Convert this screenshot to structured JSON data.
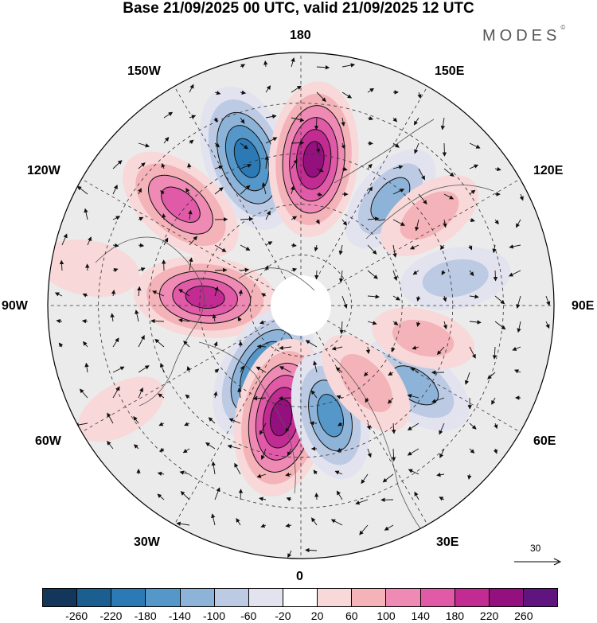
{
  "title": "Base 21/09/2025 00 UTC, valid 21/09/2025 12 UTC",
  "brand": "MODES",
  "brand_mark": "©",
  "longitude_labels": {
    "top": "180",
    "bottom": "0",
    "left": "90W",
    "right": "90E",
    "upper_left": "150W",
    "upper_right": "150E",
    "mid_upper_left": "120W",
    "mid_upper_right": "120E",
    "mid_lower_left": "60W",
    "mid_lower_right": "60E",
    "lower_left": "30W",
    "lower_right": "30E"
  },
  "reference_vector": "30",
  "colorbar": {
    "colors": [
      "#12375a",
      "#1a5f90",
      "#2b7ab6",
      "#5597c8",
      "#8db3d8",
      "#bccbe3",
      "#e3e3f0",
      "#ffffff",
      "#f8d8d8",
      "#f4b3b8",
      "#ee8ab3",
      "#e05aa8",
      "#c12b92",
      "#95107f",
      "#5f1480"
    ],
    "ticks": [
      "-260",
      "-220",
      "-180",
      "-140",
      "-100",
      "-60",
      "-20",
      "20",
      "60",
      "100",
      "140",
      "180",
      "220",
      "260"
    ]
  },
  "anomaly_centers": [
    {
      "lon": -160,
      "r": 0.62,
      "value": -220
    },
    {
      "lon": 175,
      "r": 0.58,
      "value": 240
    },
    {
      "lon": 140,
      "r": 0.55,
      "value": -120
    },
    {
      "lon": -130,
      "r": 0.62,
      "value": 180
    },
    {
      "lon": -95,
      "r": 0.38,
      "value": 200
    },
    {
      "lon": -30,
      "r": 0.3,
      "value": -200
    },
    {
      "lon": -10,
      "r": 0.45,
      "value": 250
    },
    {
      "lon": 15,
      "r": 0.45,
      "value": -160
    },
    {
      "lon": 55,
      "r": 0.55,
      "value": -140
    },
    {
      "lon": 40,
      "r": 0.4,
      "value": 110
    },
    {
      "lon": 100,
      "r": 0.62,
      "value": -100
    },
    {
      "lon": 125,
      "r": 0.62,
      "value": 100
    },
    {
      "lon": -100,
      "r": 0.85,
      "value": 70
    },
    {
      "lon": -60,
      "r": 0.82,
      "value": 50
    },
    {
      "lon": 75,
      "r": 0.5,
      "value": 80
    }
  ]
}
